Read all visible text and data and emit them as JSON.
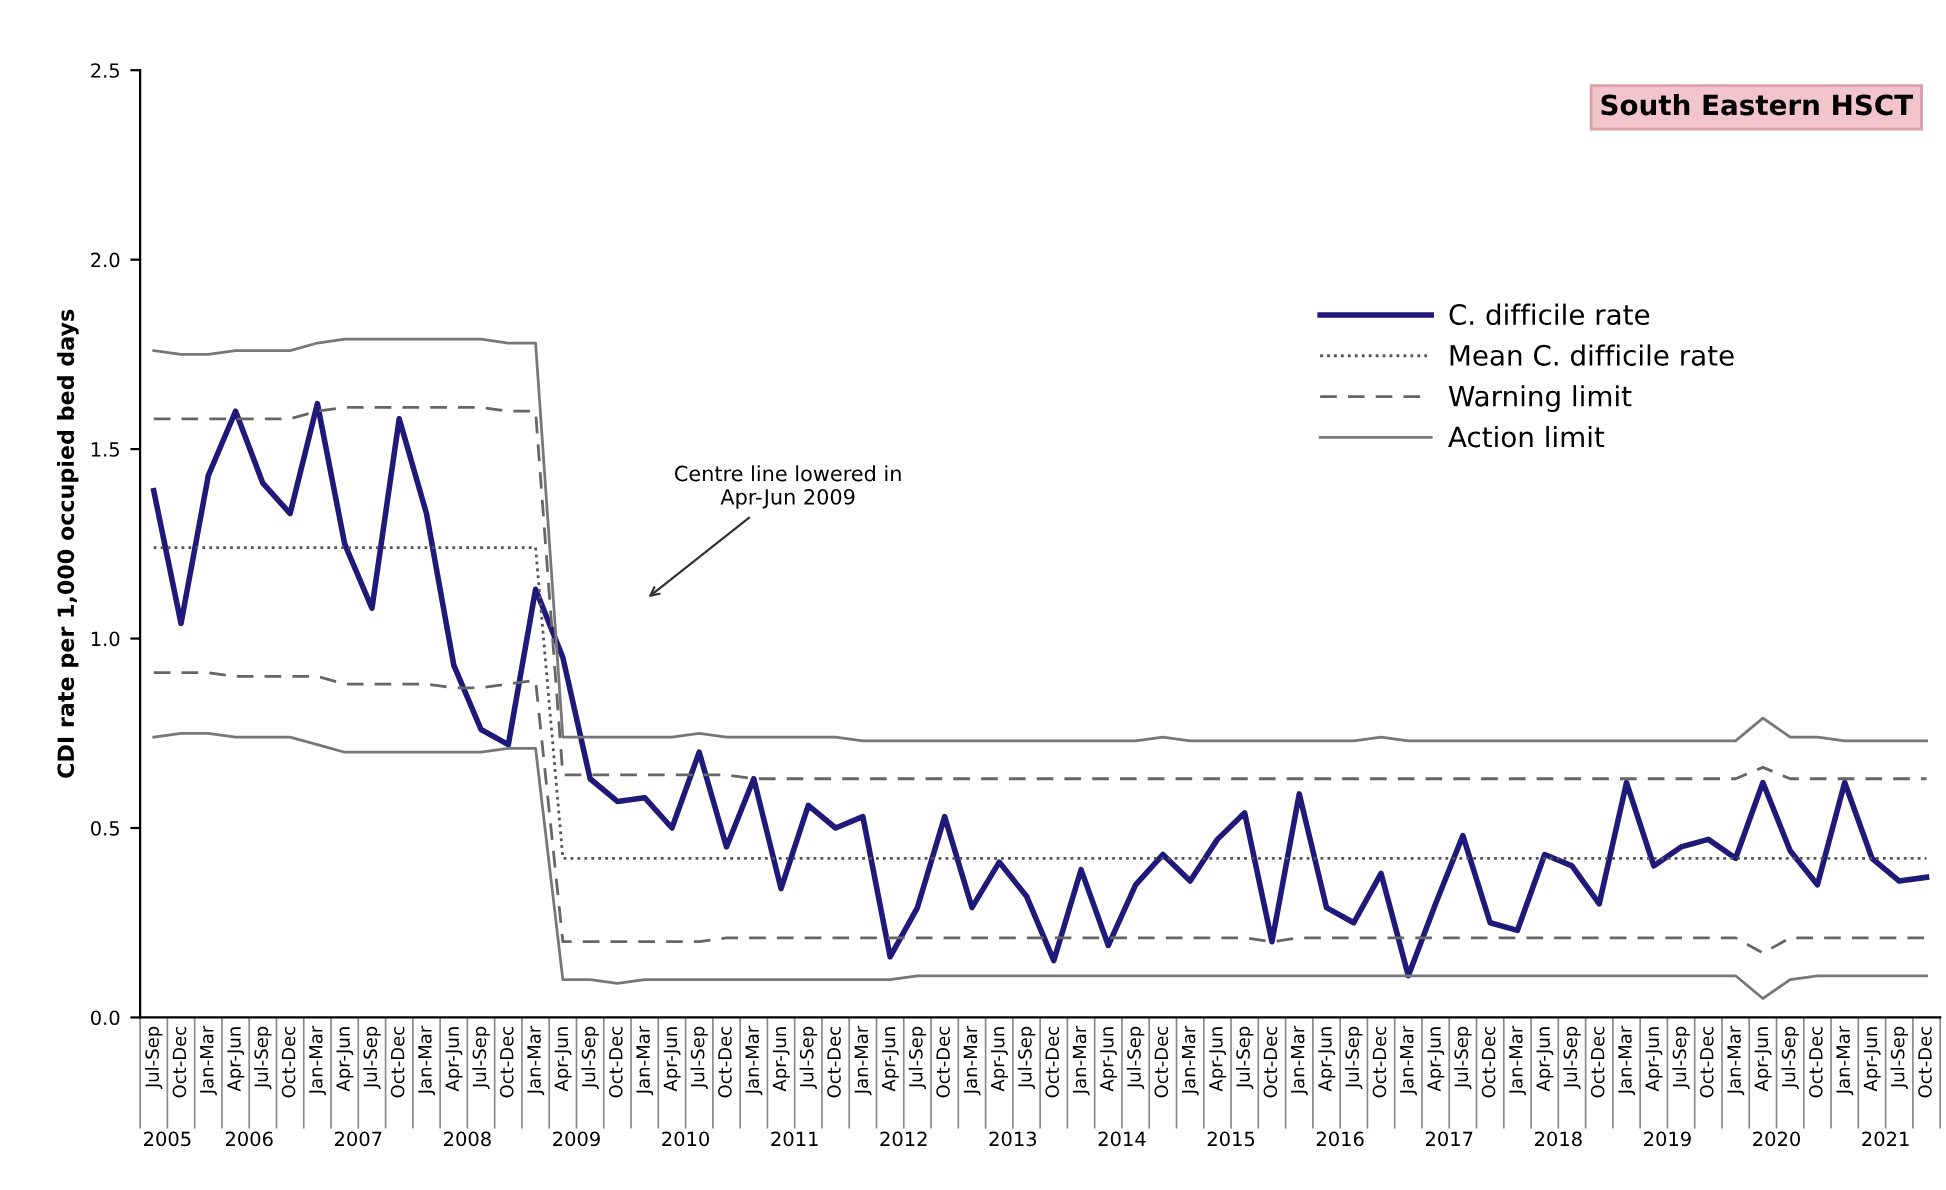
{
  "chart_data": {
    "type": "line",
    "title": "South Eastern HSCT",
    "ylabel": "CDI rate per 1,000 occupied bed days",
    "categories": [
      "Jul-Sep",
      "Oct-Dec",
      "Jan-Mar",
      "Apr-Jun",
      "Jul-Sep",
      "Oct-Dec",
      "Jan-Mar",
      "Apr-Jun",
      "Jul-Sep",
      "Oct-Dec",
      "Jan-Mar",
      "Apr-Jun",
      "Jul-Sep",
      "Oct-Dec",
      "Jan-Mar",
      "Apr-Jun",
      "Jul-Sep",
      "Oct-Dec",
      "Jan-Mar",
      "Apr-Jun",
      "Jul-Sep",
      "Oct-Dec",
      "Jan-Mar",
      "Apr-Jun",
      "Jul-Sep",
      "Oct-Dec",
      "Jan-Mar",
      "Apr-Jun",
      "Jul-Sep",
      "Oct-Dec",
      "Jan-Mar",
      "Apr-Jun",
      "Jul-Sep",
      "Oct-Dec",
      "Jan-Mar",
      "Apr-Jun",
      "Jul-Sep",
      "Oct-Dec",
      "Jan-Mar",
      "Apr-Jun",
      "Jul-Sep",
      "Oct-Dec",
      "Jan-Mar",
      "Apr-Jun",
      "Jul-Sep",
      "Oct-Dec",
      "Jan-Mar",
      "Apr-Jun",
      "Jul-Sep",
      "Oct-Dec",
      "Jan-Mar",
      "Apr-Jun",
      "Jul-Sep",
      "Oct-Dec",
      "Jan-Mar",
      "Apr-Jun",
      "Jul-Sep",
      "Oct-Dec",
      "Jan-Mar",
      "Apr-Jun",
      "Jul-Sep",
      "Oct-Dec",
      "Jan-Mar",
      "Apr-Jun",
      "Jul-Sep",
      "Oct-Dec"
    ],
    "series": [
      {
        "name": "C. difficile rate",
        "color": "#1f1a7a",
        "line_style": "solid",
        "values": [
          1.39,
          1.04,
          1.43,
          1.6,
          1.41,
          1.33,
          1.62,
          1.25,
          1.08,
          1.58,
          1.33,
          0.93,
          0.76,
          0.72,
          1.13,
          0.95,
          0.63,
          0.57,
          0.58,
          0.5,
          0.7,
          0.45,
          0.63,
          0.34,
          0.56,
          0.5,
          0.53,
          0.16,
          0.29,
          0.53,
          0.29,
          0.41,
          0.32,
          0.15,
          0.39,
          0.19,
          0.35,
          0.43,
          0.36,
          0.47,
          0.54,
          0.2,
          0.59,
          0.29,
          0.25,
          0.38,
          0.11,
          0.3,
          0.48,
          0.25,
          0.23,
          0.43,
          0.4,
          0.3,
          0.62,
          0.4,
          0.45,
          0.47,
          0.42,
          0.62,
          0.44,
          0.35,
          0.62,
          0.42,
          0.36,
          0.37
        ]
      },
      {
        "name": "Mean C. difficile rate",
        "color": "#555555",
        "line_style": "dotted",
        "values": [
          1.24,
          1.24,
          1.24,
          1.24,
          1.24,
          1.24,
          1.24,
          1.24,
          1.24,
          1.24,
          1.24,
          1.24,
          1.24,
          1.24,
          1.24,
          0.42,
          0.42,
          0.42,
          0.42,
          0.42,
          0.42,
          0.42,
          0.42,
          0.42,
          0.42,
          0.42,
          0.42,
          0.42,
          0.42,
          0.42,
          0.42,
          0.42,
          0.42,
          0.42,
          0.42,
          0.42,
          0.42,
          0.42,
          0.42,
          0.42,
          0.42,
          0.42,
          0.42,
          0.42,
          0.42,
          0.42,
          0.42,
          0.42,
          0.42,
          0.42,
          0.42,
          0.42,
          0.42,
          0.42,
          0.42,
          0.42,
          0.42,
          0.42,
          0.42,
          0.42,
          0.42,
          0.42,
          0.42,
          0.42,
          0.42,
          0.42
        ]
      },
      {
        "name": "Warning limit",
        "color": "#666666",
        "line_style": "dashed",
        "values": [
          1.58,
          1.58,
          1.58,
          1.58,
          1.58,
          1.58,
          1.6,
          1.61,
          1.61,
          1.61,
          1.61,
          1.61,
          1.61,
          1.6,
          1.6,
          0.64,
          0.64,
          0.64,
          0.64,
          0.64,
          0.64,
          0.64,
          0.63,
          0.63,
          0.63,
          0.63,
          0.63,
          0.63,
          0.63,
          0.63,
          0.63,
          0.63,
          0.63,
          0.63,
          0.63,
          0.63,
          0.63,
          0.63,
          0.63,
          0.63,
          0.63,
          0.63,
          0.63,
          0.63,
          0.63,
          0.63,
          0.63,
          0.63,
          0.63,
          0.63,
          0.63,
          0.63,
          0.63,
          0.63,
          0.63,
          0.63,
          0.63,
          0.63,
          0.63,
          0.66,
          0.63,
          0.63,
          0.63,
          0.63,
          0.63,
          0.63
        ]
      },
      {
        "color": "#666666",
        "line_style": "dashed",
        "values": [
          0.91,
          0.91,
          0.91,
          0.9,
          0.9,
          0.9,
          0.9,
          0.88,
          0.88,
          0.88,
          0.88,
          0.87,
          0.87,
          0.88,
          0.89,
          0.2,
          0.2,
          0.2,
          0.2,
          0.2,
          0.2,
          0.21,
          0.21,
          0.21,
          0.21,
          0.21,
          0.21,
          0.21,
          0.21,
          0.21,
          0.21,
          0.21,
          0.21,
          0.21,
          0.21,
          0.21,
          0.21,
          0.21,
          0.21,
          0.21,
          0.21,
          0.2,
          0.21,
          0.21,
          0.21,
          0.21,
          0.21,
          0.21,
          0.21,
          0.21,
          0.21,
          0.21,
          0.21,
          0.21,
          0.21,
          0.21,
          0.21,
          0.21,
          0.21,
          0.17,
          0.21,
          0.21,
          0.21,
          0.21,
          0.21,
          0.21
        ]
      },
      {
        "name": "Action limit",
        "color": "#777777",
        "line_style": "solid",
        "values": [
          1.76,
          1.75,
          1.75,
          1.76,
          1.76,
          1.76,
          1.78,
          1.79,
          1.79,
          1.79,
          1.79,
          1.79,
          1.79,
          1.78,
          1.78,
          0.74,
          0.74,
          0.74,
          0.74,
          0.74,
          0.75,
          0.74,
          0.74,
          0.74,
          0.74,
          0.74,
          0.73,
          0.73,
          0.73,
          0.73,
          0.73,
          0.73,
          0.73,
          0.73,
          0.73,
          0.73,
          0.73,
          0.74,
          0.73,
          0.73,
          0.73,
          0.73,
          0.73,
          0.73,
          0.73,
          0.74,
          0.73,
          0.73,
          0.73,
          0.73,
          0.73,
          0.73,
          0.73,
          0.73,
          0.73,
          0.73,
          0.73,
          0.73,
          0.73,
          0.79,
          0.74,
          0.74,
          0.73,
          0.73,
          0.73,
          0.73
        ]
      },
      {
        "color": "#777777",
        "line_style": "solid",
        "values": [
          0.74,
          0.75,
          0.75,
          0.74,
          0.74,
          0.74,
          0.72,
          0.7,
          0.7,
          0.7,
          0.7,
          0.7,
          0.7,
          0.71,
          0.71,
          0.1,
          0.1,
          0.09,
          0.1,
          0.1,
          0.1,
          0.1,
          0.1,
          0.1,
          0.1,
          0.1,
          0.1,
          0.1,
          0.11,
          0.11,
          0.11,
          0.11,
          0.11,
          0.11,
          0.11,
          0.11,
          0.11,
          0.11,
          0.11,
          0.11,
          0.11,
          0.11,
          0.11,
          0.11,
          0.11,
          0.11,
          0.11,
          0.11,
          0.11,
          0.11,
          0.11,
          0.11,
          0.11,
          0.11,
          0.11,
          0.11,
          0.11,
          0.11,
          0.11,
          0.05,
          0.1,
          0.11,
          0.11,
          0.11,
          0.11,
          0.11
        ]
      }
    ],
    "ylim": [
      0,
      2.5
    ],
    "yticks": [
      {
        "value": 0,
        "label": "0.0"
      },
      {
        "value": 0.5,
        "label": "0.5"
      },
      {
        "value": 1,
        "label": "1.0"
      },
      {
        "value": 1.5,
        "label": "1.5"
      },
      {
        "value": 2,
        "label": "2.0"
      },
      {
        "value": 2.5,
        "label": "2.5"
      }
    ],
    "annotations": [
      "Centre line lowered in\nApr-Jun 2009",
      "2005",
      "2006",
      "2007",
      "2008",
      "2009",
      "2010",
      "2011",
      "2012",
      "2013",
      "2014",
      "2015",
      "2016",
      "2017",
      "2018",
      "2019",
      "2020",
      "2021"
    ],
    "legend": "top right",
    "grid": false,
    "marker": "none"
  }
}
